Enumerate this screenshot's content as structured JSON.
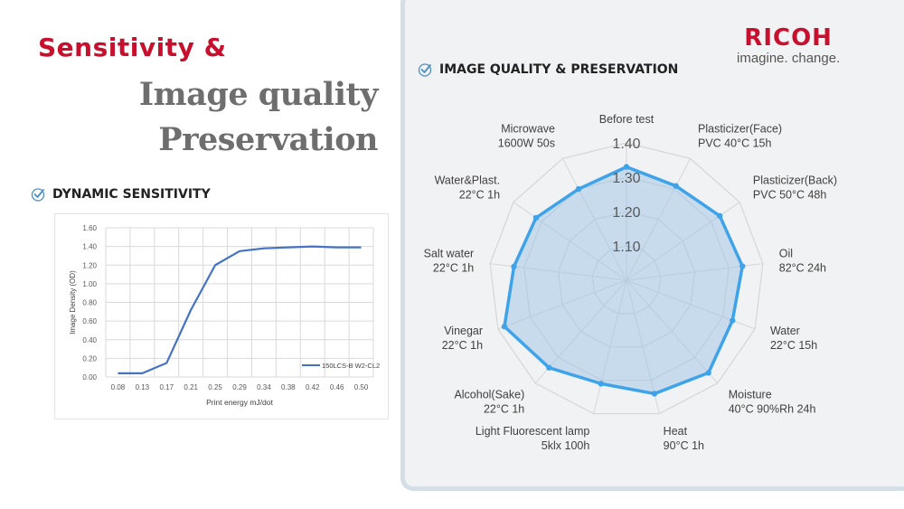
{
  "slide": {
    "title_line1": "Sensitivity &",
    "title_line2": "Image quality",
    "title_line3": "Preservation"
  },
  "logo": {
    "brand": "RICOH",
    "tagline": "imagine. change.",
    "brand_color": "#c8102e"
  },
  "sections": {
    "dynamic": "DYNAMIC SENSITIVITY",
    "quality": "IMAGE QUALITY & PRESERVATION"
  },
  "icons": [
    "check-circle-icon"
  ],
  "chart_data": [
    {
      "type": "line",
      "title": "",
      "xlabel": "Print energy mJ/dot",
      "ylabel": "Image Density (OD)",
      "ylim": [
        0,
        1.6
      ],
      "yticks": [
        "0.00",
        "0.20",
        "0.40",
        "0.60",
        "0.80",
        "1.00",
        "1.20",
        "1.40",
        "1.60"
      ],
      "categories": [
        "0.08",
        "0.13",
        "0.17",
        "0.21",
        "0.25",
        "0.29",
        "0.34",
        "0.38",
        "0.42",
        "0.46",
        "0.50"
      ],
      "grid": true,
      "legend": "bottom-right",
      "series": [
        {
          "name": "150LCS-B W2-CL2",
          "color": "#4472c4",
          "values": [
            0.04,
            0.04,
            0.15,
            0.72,
            1.2,
            1.35,
            1.38,
            1.39,
            1.4,
            1.39,
            1.39
          ]
        }
      ]
    },
    {
      "type": "radar",
      "title": "",
      "rlim": [
        1.0,
        1.4
      ],
      "rticks": [
        "1.10",
        "1.20",
        "1.30",
        "1.40"
      ],
      "fill_color": "#9dc3e6",
      "line_color": "#3fa3ea",
      "categories": [
        [
          "Before test"
        ],
        [
          "Plasticizer(Face)",
          "PVC 40°C 15h"
        ],
        [
          "Plasticizer(Back)",
          "PVC 50°C 48h"
        ],
        [
          "Oil",
          "82°C 24h"
        ],
        [
          "Water",
          "22°C 15h"
        ],
        [
          "Moisture",
          "40°C 90%Rh 24h"
        ],
        [
          "Heat",
          "90°C 1h"
        ],
        [
          "Light Fluorescent lamp",
          "5klx 100h"
        ],
        [
          "Alcohol(Sake)",
          "22°C 1h"
        ],
        [
          "Vinegar",
          "22°C 1h"
        ],
        [
          "Salt water",
          "22°C 1h"
        ],
        [
          "Water&Plast.",
          "22°C 1h"
        ],
        [
          "Microwave",
          "1600W 50s"
        ]
      ],
      "values": [
        1.33,
        1.31,
        1.33,
        1.34,
        1.33,
        1.36,
        1.34,
        1.31,
        1.34,
        1.38,
        1.33,
        1.32,
        1.3
      ]
    }
  ]
}
